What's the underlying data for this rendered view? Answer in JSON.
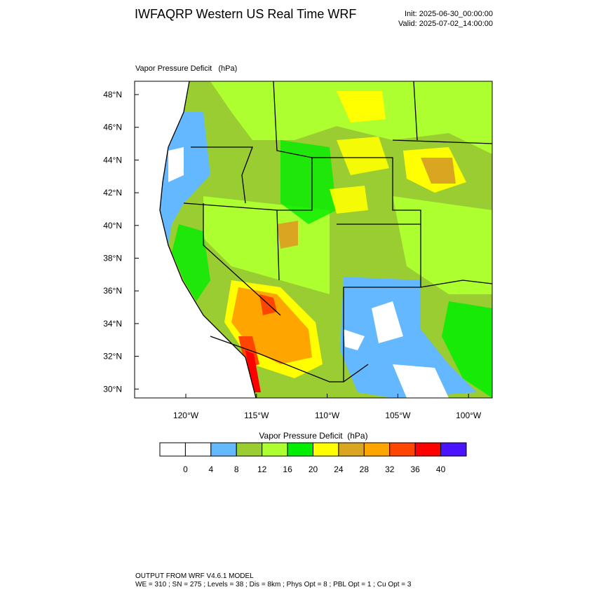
{
  "header": {
    "title": "IWFAQRP Western US Real Time WRF",
    "init": "Init: 2025-06-30_00:00:00",
    "valid": "Valid: 2025-07-02_14:00:00"
  },
  "map": {
    "field_label": "Vapor Pressure Deficit   (hPa)",
    "lat_labels": [
      "48°N",
      "46°N",
      "44°N",
      "42°N",
      "40°N",
      "38°N",
      "36°N",
      "34°N",
      "32°N",
      "30°N"
    ],
    "lon_labels": [
      "120°W",
      "115°W",
      "110°W",
      "105°W",
      "100°W"
    ]
  },
  "colorbar": {
    "title": "Vapor Pressure Deficit  (hPa)",
    "colors": [
      "#ffffff",
      "#ffffff",
      "#63b8ff",
      "#9acd32",
      "#adff2f",
      "#00ee00",
      "#ffff00",
      "#daa520",
      "#ffa500",
      "#ff4500",
      "#ff0000",
      "#4b14ff"
    ],
    "labels": [
      0,
      4,
      8,
      12,
      16,
      20,
      24,
      28,
      32,
      36,
      40
    ]
  },
  "footer": {
    "line1": "OUTPUT FROM WRF V4.6.1 MODEL",
    "line2": "WE = 310 ; SN = 275 ; Levels = 38 ; Dis = 8km ; Phys Opt = 8 ; PBL Opt = 1 ; Cu Opt = 3"
  }
}
